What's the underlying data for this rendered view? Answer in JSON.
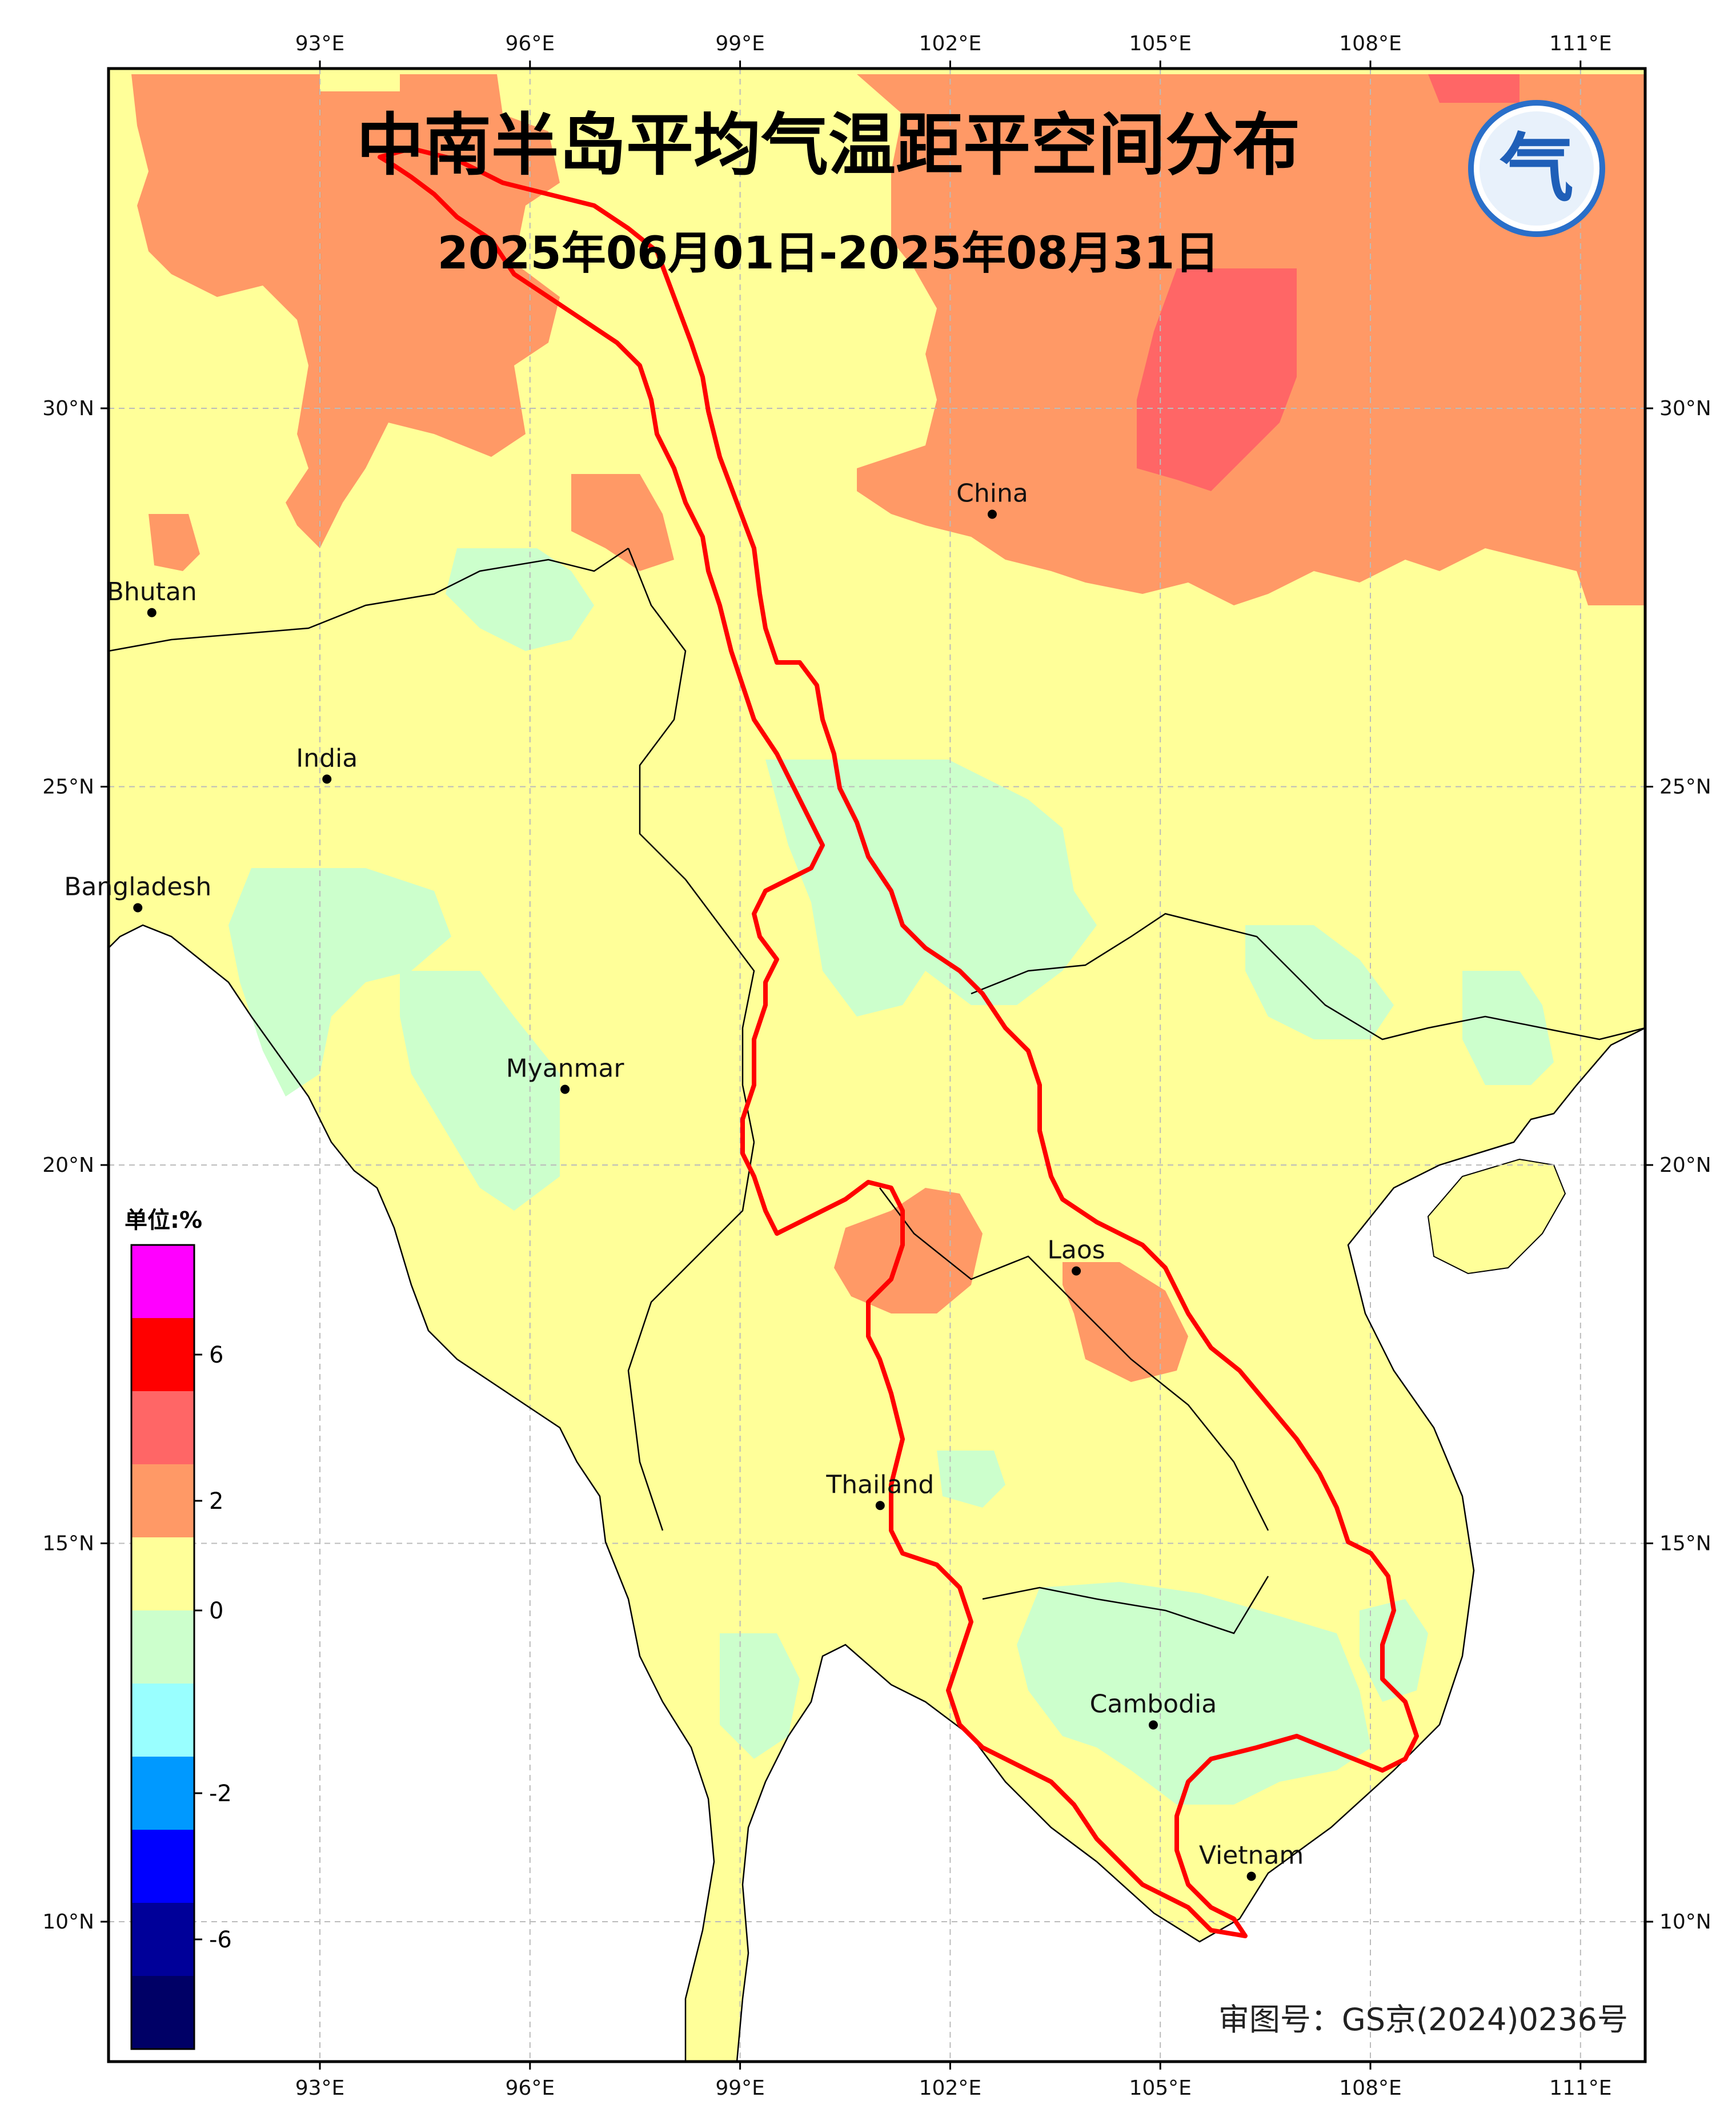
{
  "title": "中南半岛平均气温距平空间分布",
  "subtitle": "2025年06月01日-2025年08月31日",
  "approval_number": "审图号：GS京(2024)0236号",
  "logo_glyph": "气",
  "axes": {
    "lon_labels": [
      "93°E",
      "96°E",
      "99°E",
      "102°E",
      "105°E",
      "108°E",
      "111°E"
    ],
    "lat_labels": [
      "30°N",
      "25°N",
      "20°N",
      "15°N",
      "10°N"
    ]
  },
  "places": [
    {
      "name": "China",
      "lon": 102.6,
      "lat": 28.6
    },
    {
      "name": "Bhutan",
      "lon": 90.6,
      "lat": 27.3
    },
    {
      "name": "India",
      "lon": 93.1,
      "lat": 25.1
    },
    {
      "name": "Bangladesh",
      "lon": 90.4,
      "lat": 23.4
    },
    {
      "name": "Myanmar",
      "lon": 96.5,
      "lat": 21.0
    },
    {
      "name": "Laos",
      "lon": 103.8,
      "lat": 18.6
    },
    {
      "name": "Thailand",
      "lon": 101.0,
      "lat": 15.5
    },
    {
      "name": "Cambodia",
      "lon": 104.9,
      "lat": 12.6
    },
    {
      "name": "Vietnam",
      "lon": 106.3,
      "lat": 10.6
    }
  ],
  "colorbar": {
    "unit_label": "单位:%",
    "tick_labels": [
      "6",
      "2",
      "0",
      "-2",
      "-6"
    ],
    "colors": [
      "#ff00ff",
      "#ff0000",
      "#ff6666",
      "#ff9966",
      "#ffff99",
      "#ccffcc",
      "#99ffff",
      "#0099ff",
      "#0000ff",
      "#000099",
      "#000066"
    ],
    "color_meanings": {
      "#ff9966": "1 to 2 (warm anomaly)",
      "#ff6666": "2 to 4",
      "#ffff99": "0 to 1",
      "#ccffcc": "-1 to 0"
    }
  },
  "colors": {
    "border_highlight": "#ff0000",
    "coastline": "#000000",
    "sea": "#ffffff",
    "grid": "#bbbbbb"
  }
}
